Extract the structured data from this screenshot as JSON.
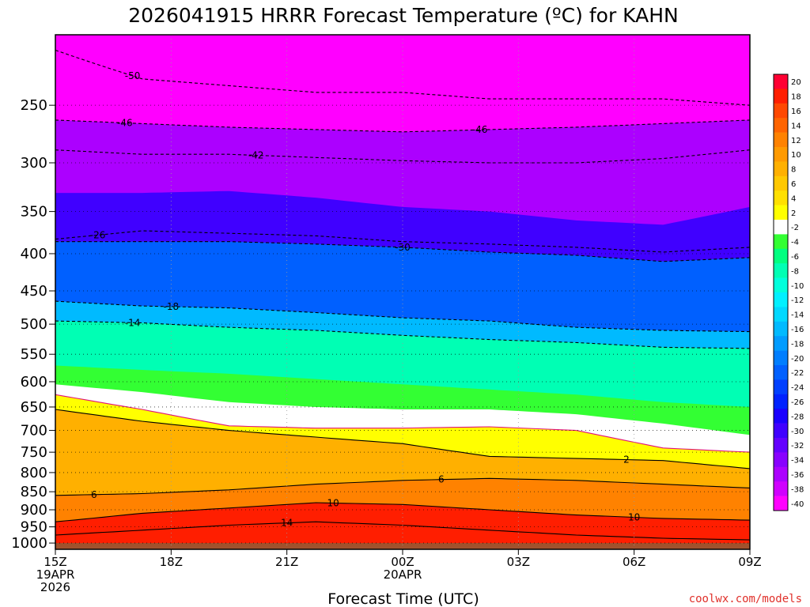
{
  "chart_data": {
    "type": "heatmap",
    "title": "2026041915 HRRR Forecast Temperature (ºC) for KAHN",
    "xlabel": "Forecast Time (UTC)",
    "ylabel": "",
    "credit": "coolwx.com/models",
    "x_ticks": [
      {
        "hour": 0,
        "lines": [
          "15Z",
          "19APR",
          "2026"
        ]
      },
      {
        "hour": 3,
        "lines": [
          "18Z"
        ]
      },
      {
        "hour": 6,
        "lines": [
          "21Z"
        ]
      },
      {
        "hour": 9,
        "lines": [
          "00Z",
          "20APR"
        ]
      },
      {
        "hour": 12,
        "lines": [
          "03Z"
        ]
      },
      {
        "hour": 15,
        "lines": [
          "06Z"
        ]
      },
      {
        "hour": 18,
        "lines": [
          "09Z"
        ]
      }
    ],
    "xlim": [
      0,
      18
    ],
    "y_ticks": [
      250,
      300,
      350,
      400,
      450,
      500,
      550,
      600,
      650,
      700,
      750,
      800,
      850,
      900,
      950,
      1000
    ],
    "ylim": [
      1020,
      200
    ],
    "y_scale": "log",
    "grid": true,
    "colorbar": {
      "placement": "right",
      "levels": [
        20,
        18,
        16,
        14,
        12,
        10,
        8,
        6,
        4,
        2,
        -2,
        -4,
        -6,
        -8,
        -10,
        -12,
        -14,
        -16,
        -18,
        -20,
        -22,
        -24,
        -26,
        -28,
        -30,
        -32,
        -34,
        -36,
        -38,
        -40
      ],
      "colors": [
        "#ff0033",
        "#ff1e00",
        "#ff4800",
        "#ff6400",
        "#ff8200",
        "#ff9a00",
        "#ffb000",
        "#ffc800",
        "#ffe000",
        "#ffff00",
        "#ffffff",
        "#33ff33",
        "#00ff80",
        "#00ffb4",
        "#00ffdc",
        "#00f0ff",
        "#00d8ff",
        "#00baff",
        "#009cff",
        "#007eff",
        "#0060ff",
        "#0040ff",
        "#0022ff",
        "#1a00ff",
        "#4000ff",
        "#6400ff",
        "#8800ff",
        "#ac00ff",
        "#d000ff",
        "#ff00ff"
      ]
    },
    "isotherms": [
      {
        "label": "-50",
        "p": [
          210,
          230,
          235,
          240,
          240,
          245,
          245,
          245,
          250
        ],
        "label_at": 2
      },
      {
        "label": "-46",
        "p": [
          262,
          265,
          268,
          270,
          272,
          270,
          268,
          265,
          262
        ],
        "label_at": 1.8
      },
      {
        "label": "-46",
        "p": [
          262,
          265,
          268,
          270,
          272,
          270,
          268,
          265,
          262
        ],
        "label_at": 11
      },
      {
        "label": "-42",
        "p": [
          288,
          292,
          292,
          295,
          298,
          300,
          300,
          296,
          288
        ],
        "label_at": 5.2
      },
      {
        "label": "-30",
        "p": [
          385,
          385,
          385,
          388,
          392,
          398,
          402,
          410,
          405
        ],
        "label_at": 9
      },
      {
        "label": "-26",
        "p": [
          382,
          372,
          375,
          378,
          385,
          388,
          392,
          398,
          392
        ],
        "label_at": 1.1
      },
      {
        "label": "-18",
        "p": [
          465,
          472,
          475,
          482,
          490,
          495,
          505,
          510,
          512
        ],
        "label_at": 3
      },
      {
        "label": "-14",
        "p": [
          495,
          498,
          505,
          510,
          518,
          525,
          530,
          538,
          540
        ],
        "label_at": 2
      }
    ],
    "zero_line": [
      625,
      655,
      690,
      695,
      695,
      692,
      700,
      740,
      750
    ],
    "warm_lines": [
      {
        "label": "2",
        "p": [
          655,
          680,
          700,
          715,
          730,
          760,
          765,
          770,
          790
        ],
        "label_at": 14.8
      },
      {
        "label": "6",
        "p": [
          860,
          855,
          845,
          830,
          820,
          815,
          820,
          830,
          840
        ],
        "label_at": 1
      },
      {
        "label": "6",
        "p": [
          860,
          855,
          845,
          830,
          820,
          815,
          820,
          830,
          840
        ],
        "label_at": 10
      },
      {
        "label": "10",
        "p": [
          935,
          910,
          895,
          880,
          885,
          900,
          915,
          925,
          930
        ],
        "label_at": 7.2
      },
      {
        "label": "10",
        "p": [
          935,
          910,
          895,
          880,
          885,
          900,
          915,
          925,
          930
        ],
        "label_at": 15
      },
      {
        "label": "14",
        "p": [
          975,
          960,
          945,
          935,
          945,
          960,
          975,
          985,
          990
        ],
        "label_at": 6
      }
    ],
    "ground_p": 1000,
    "ground_color": "#a0522d"
  }
}
